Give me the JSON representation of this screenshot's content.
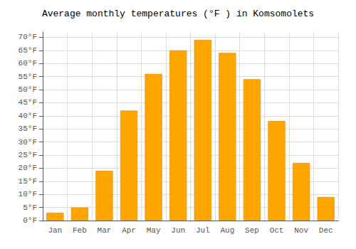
{
  "chart_data": {
    "type": "bar",
    "title": "Average monthly temperatures (°F ) in Komsomolets",
    "categories": [
      "Jan",
      "Feb",
      "Mar",
      "Apr",
      "May",
      "Jun",
      "Jul",
      "Aug",
      "Sep",
      "Oct",
      "Nov",
      "Dec"
    ],
    "values": [
      3,
      5,
      19,
      42,
      56,
      65,
      69,
      64,
      54,
      38,
      22,
      9
    ],
    "color": "#FFA500",
    "ylim": [
      0,
      72
    ],
    "yticks": [
      {
        "value": 0,
        "label": "0°F"
      },
      {
        "value": 5,
        "label": "5°F"
      },
      {
        "value": 10,
        "label": "10°F"
      },
      {
        "value": 15,
        "label": "15°F"
      },
      {
        "value": 20,
        "label": "20°F"
      },
      {
        "value": 25,
        "label": "25°F"
      },
      {
        "value": 30,
        "label": "30°F"
      },
      {
        "value": 35,
        "label": "35°F"
      },
      {
        "value": 40,
        "label": "40°F"
      },
      {
        "value": 45,
        "label": "45°F"
      },
      {
        "value": 50,
        "label": "50°F"
      },
      {
        "value": 55,
        "label": "55°F"
      },
      {
        "value": 60,
        "label": "60°F"
      },
      {
        "value": 65,
        "label": "65°F"
      },
      {
        "value": 70,
        "label": "70°F"
      }
    ],
    "grid": true
  }
}
